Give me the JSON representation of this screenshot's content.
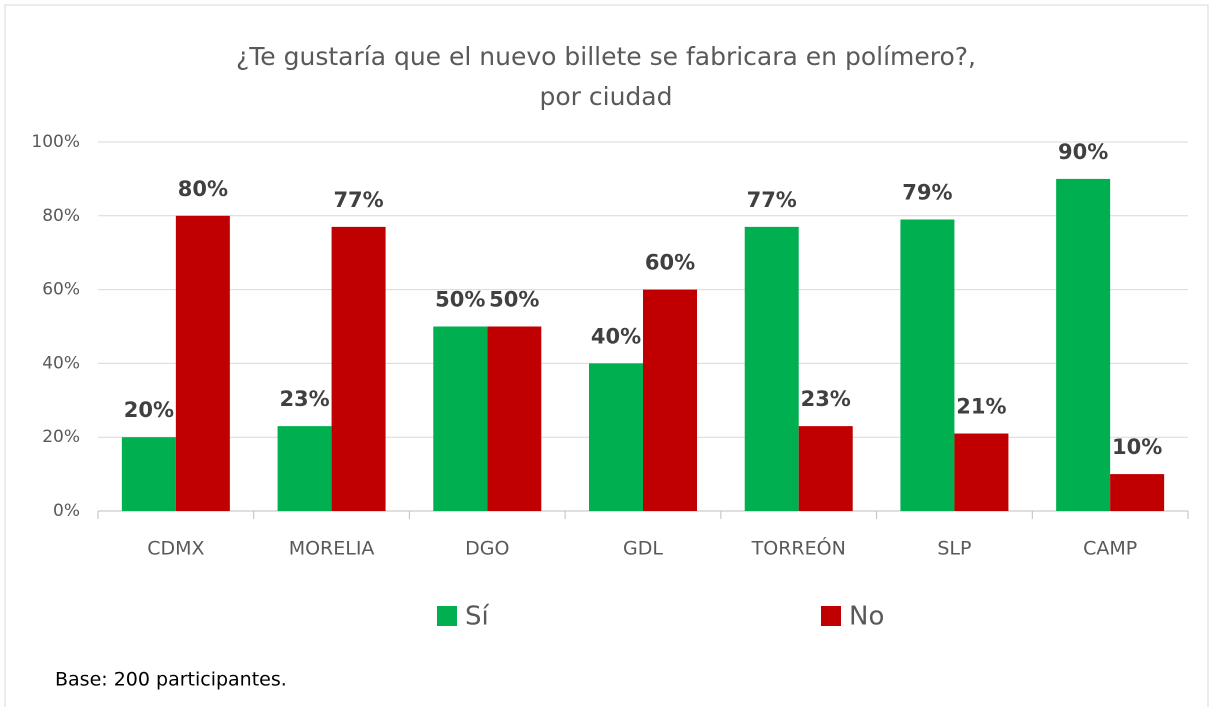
{
  "chart_data": {
    "type": "bar",
    "title": [
      "¿Te gustaría que el nuevo billete se fabricara en polímero?,",
      "por ciudad"
    ],
    "categories": [
      "CDMX",
      "MORELIA",
      "DGO",
      "GDL",
      "TORREÓN",
      "SLP",
      "CAMP"
    ],
    "series": [
      {
        "name": "Sí",
        "color": "#00b050",
        "values": [
          20,
          23,
          50,
          40,
          77,
          79,
          90
        ],
        "value_labels": [
          "20%",
          "23%",
          "50%",
          "40%",
          "77%",
          "79%",
          "90%"
        ]
      },
      {
        "name": "No",
        "color": "#c00000",
        "values": [
          80,
          77,
          50,
          60,
          23,
          21,
          10
        ],
        "value_labels": [
          "80%",
          "77%",
          "50%",
          "60%",
          "23%",
          "21%",
          "10%"
        ]
      }
    ],
    "ylim": [
      0,
      100
    ],
    "yticks": [
      {
        "value": 0,
        "label": "0%"
      },
      {
        "value": 20,
        "label": "20%"
      },
      {
        "value": 40,
        "label": "40%"
      },
      {
        "value": 60,
        "label": "60%"
      },
      {
        "value": 80,
        "label": "80%"
      },
      {
        "value": 100,
        "label": "100%"
      }
    ],
    "grid": true,
    "legend": "bottom",
    "note": "Base: 200 participantes."
  }
}
